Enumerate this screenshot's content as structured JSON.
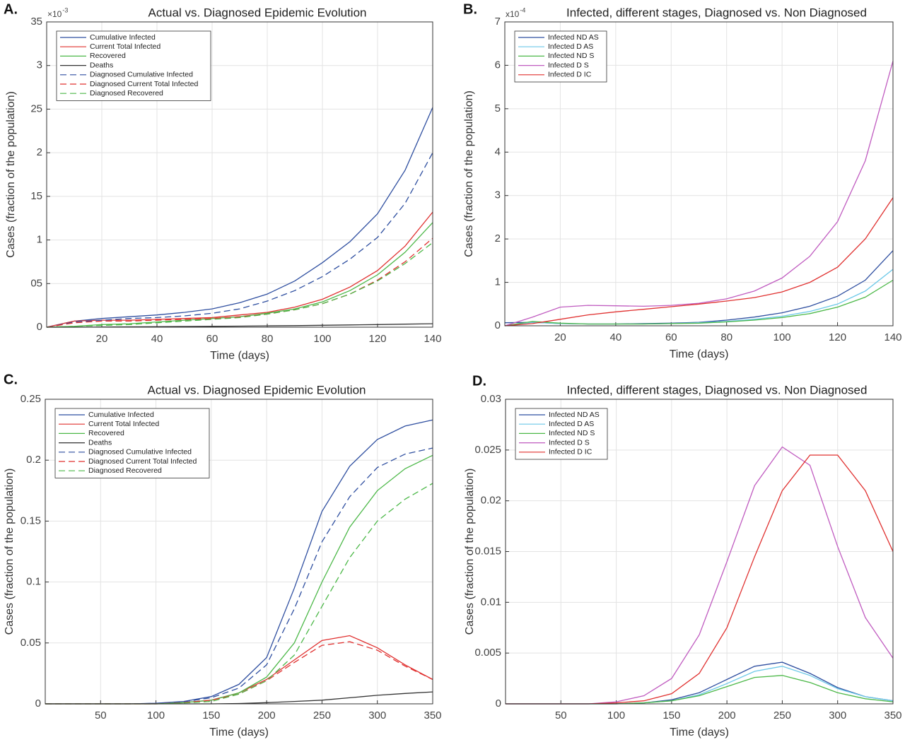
{
  "chart_data": [
    {
      "type": "line",
      "panel_label": "A.",
      "title": "Actual vs. Diagnosed Epidemic Evolution",
      "xlabel": "Time (days)",
      "ylabel": "Cases (fraction of the population)",
      "y_multiplier": "×10",
      "y_exponent": "-3",
      "x": [
        0,
        10,
        20,
        30,
        40,
        50,
        60,
        70,
        80,
        90,
        100,
        110,
        120,
        130,
        140
      ],
      "xlim": [
        0,
        140
      ],
      "xticks": [
        20,
        40,
        60,
        80,
        100,
        120,
        140
      ],
      "ylim": [
        0,
        3.5
      ],
      "yticks": [
        0,
        {
          "value": 0.5,
          "label": "05"
        },
        1,
        {
          "value": 1.5,
          "label": "15"
        },
        2,
        {
          "value": 2.5,
          "label": "25"
        },
        3,
        {
          "value": 3.5,
          "label": "35"
        }
      ],
      "grid": true,
      "legend": "upper left",
      "series": [
        {
          "name": "Cumulative Infected",
          "color": "#2f4fa0",
          "dash": false,
          "values": [
            0,
            0.07,
            0.1,
            0.12,
            0.14,
            0.17,
            0.21,
            0.28,
            0.38,
            0.53,
            0.74,
            0.98,
            1.3,
            1.8,
            2.52
          ]
        },
        {
          "name": "Current Total Infected",
          "color": "#e0302f",
          "dash": false,
          "values": [
            0,
            0.07,
            0.08,
            0.08,
            0.09,
            0.1,
            0.11,
            0.14,
            0.17,
            0.23,
            0.32,
            0.46,
            0.65,
            0.93,
            1.32
          ]
        },
        {
          "name": "Recovered",
          "color": "#4cb848",
          "dash": false,
          "values": [
            0,
            0.01,
            0.03,
            0.04,
            0.06,
            0.08,
            0.1,
            0.12,
            0.16,
            0.21,
            0.29,
            0.42,
            0.6,
            0.86,
            1.2
          ]
        },
        {
          "name": "Deaths",
          "color": "#333333",
          "dash": false,
          "values": [
            0,
            0,
            0.002,
            0.004,
            0.006,
            0.008,
            0.01,
            0.012,
            0.015,
            0.018,
            0.022,
            0.026,
            0.03,
            0.035,
            0.04
          ]
        },
        {
          "name": "Diagnosed Cumulative Infected",
          "color": "#2f4fa0",
          "dash": true,
          "values": [
            0,
            0.06,
            0.08,
            0.1,
            0.11,
            0.13,
            0.16,
            0.21,
            0.3,
            0.42,
            0.58,
            0.78,
            1.03,
            1.42,
            2.0
          ]
        },
        {
          "name": "Diagnosed Current Total Infected",
          "color": "#e0302f",
          "dash": true,
          "values": [
            0,
            0.05,
            0.07,
            0.07,
            0.08,
            0.09,
            0.1,
            0.12,
            0.15,
            0.2,
            0.27,
            0.38,
            0.54,
            0.75,
            1.02
          ]
        },
        {
          "name": "Diagnosed Recovered",
          "color": "#4cb848",
          "dash": true,
          "values": [
            0,
            0.01,
            0.02,
            0.03,
            0.05,
            0.07,
            0.09,
            0.11,
            0.15,
            0.2,
            0.27,
            0.38,
            0.53,
            0.73,
            0.97
          ]
        }
      ]
    },
    {
      "type": "line",
      "panel_label": "B.",
      "title": "Infected, different stages, Diagnosed vs. Non Diagnosed",
      "xlabel": "Time (days)",
      "ylabel": "Cases (fraction of the population)",
      "y_multiplier": "x10",
      "y_exponent": "-4",
      "x": [
        0,
        10,
        20,
        30,
        40,
        50,
        60,
        70,
        80,
        90,
        100,
        110,
        120,
        130,
        140
      ],
      "xlim": [
        0,
        140
      ],
      "xticks": [
        20,
        40,
        60,
        80,
        100,
        120,
        140
      ],
      "ylim": [
        0,
        7
      ],
      "yticks": [
        0,
        1,
        2,
        3,
        4,
        5,
        6,
        7
      ],
      "grid": true,
      "legend": "upper left",
      "series": [
        {
          "name": "Infected ND AS",
          "color": "#2f4fa0",
          "dash": false,
          "values": [
            0.07,
            0.08,
            0.05,
            0.04,
            0.04,
            0.05,
            0.06,
            0.08,
            0.13,
            0.2,
            0.3,
            0.45,
            0.68,
            1.05,
            1.73
          ]
        },
        {
          "name": "Infected D AS",
          "color": "#6cc8e8",
          "dash": false,
          "values": [
            0,
            0.08,
            0.05,
            0.04,
            0.04,
            0.04,
            0.05,
            0.07,
            0.1,
            0.15,
            0.22,
            0.33,
            0.5,
            0.8,
            1.3
          ]
        },
        {
          "name": "Infected ND S",
          "color": "#4cb848",
          "dash": false,
          "values": [
            0,
            0.1,
            0.06,
            0.04,
            0.04,
            0.04,
            0.05,
            0.06,
            0.09,
            0.13,
            0.19,
            0.28,
            0.43,
            0.66,
            1.05
          ]
        },
        {
          "name": "Infected D S",
          "color": "#c05cc0",
          "dash": false,
          "values": [
            0,
            0.2,
            0.43,
            0.47,
            0.46,
            0.45,
            0.47,
            0.52,
            0.62,
            0.8,
            1.1,
            1.6,
            2.4,
            3.8,
            6.1
          ]
        },
        {
          "name": "Infected D IC",
          "color": "#e0302f",
          "dash": false,
          "values": [
            0,
            0.05,
            0.15,
            0.25,
            0.32,
            0.38,
            0.44,
            0.5,
            0.57,
            0.65,
            0.78,
            1.0,
            1.35,
            2.0,
            2.95
          ]
        }
      ]
    },
    {
      "type": "line",
      "panel_label": "C.",
      "title": "Actual vs. Diagnosed Epidemic Evolution",
      "xlabel": "Time (days)",
      "ylabel": "Cases (fraction of the population)",
      "x": [
        0,
        25,
        50,
        75,
        100,
        125,
        150,
        175,
        200,
        225,
        250,
        275,
        300,
        325,
        350
      ],
      "xlim": [
        0,
        350
      ],
      "xticks": [
        50,
        100,
        150,
        200,
        250,
        300,
        350
      ],
      "ylim": [
        0,
        0.25
      ],
      "yticks": [
        0,
        0.05,
        0.1,
        0.15,
        0.2,
        0.25
      ],
      "grid": true,
      "legend": "upper left",
      "series": [
        {
          "name": "Cumulative Infected",
          "color": "#2f4fa0",
          "dash": false,
          "values": [
            0,
            0,
            0,
            0,
            0.0005,
            0.002,
            0.006,
            0.016,
            0.038,
            0.095,
            0.158,
            0.195,
            0.217,
            0.228,
            0.233
          ]
        },
        {
          "name": "Current Total Infected",
          "color": "#e0302f",
          "dash": false,
          "values": [
            0,
            0,
            0,
            0,
            0,
            0.001,
            0.003,
            0.009,
            0.02,
            0.036,
            0.052,
            0.056,
            0.046,
            0.032,
            0.02
          ]
        },
        {
          "name": "Recovered",
          "color": "#4cb848",
          "dash": false,
          "values": [
            0,
            0,
            0,
            0,
            0,
            0.001,
            0.003,
            0.009,
            0.022,
            0.05,
            0.1,
            0.145,
            0.175,
            0.193,
            0.204
          ]
        },
        {
          "name": "Deaths",
          "color": "#333333",
          "dash": false,
          "values": [
            0,
            0,
            0,
            0,
            0,
            0,
            0,
            0.0003,
            0.001,
            0.002,
            0.003,
            0.005,
            0.007,
            0.0085,
            0.0098
          ]
        },
        {
          "name": "Diagnosed Cumulative Infected",
          "color": "#2f4fa0",
          "dash": true,
          "values": [
            0,
            0,
            0,
            0,
            0.0004,
            0.0017,
            0.005,
            0.013,
            0.032,
            0.078,
            0.133,
            0.17,
            0.194,
            0.205,
            0.21
          ]
        },
        {
          "name": "Diagnosed Current Total Infected",
          "color": "#e0302f",
          "dash": true,
          "values": [
            0,
            0,
            0,
            0,
            0,
            0.001,
            0.003,
            0.008,
            0.019,
            0.034,
            0.048,
            0.051,
            0.044,
            0.031,
            0.02
          ]
        },
        {
          "name": "Diagnosed Recovered",
          "color": "#4cb848",
          "dash": true,
          "values": [
            0,
            0,
            0,
            0,
            0,
            0.0007,
            0.002,
            0.008,
            0.019,
            0.04,
            0.08,
            0.12,
            0.15,
            0.168,
            0.181
          ]
        }
      ]
    },
    {
      "type": "line",
      "panel_label": "D.",
      "title": "Infected, different stages, Diagnosed vs. Non Diagnosed",
      "xlabel": "Time (days)",
      "ylabel": "Cases (fraction of the population)",
      "x": [
        0,
        25,
        50,
        75,
        100,
        125,
        150,
        175,
        200,
        225,
        250,
        275,
        300,
        325,
        350
      ],
      "xlim": [
        0,
        350
      ],
      "xticks": [
        50,
        100,
        150,
        200,
        250,
        300,
        350
      ],
      "ylim": [
        0,
        0.03
      ],
      "yticks": [
        0,
        0.005,
        0.01,
        0.015,
        0.02,
        0.025,
        0.03
      ],
      "grid": true,
      "legend": "upper left",
      "series": [
        {
          "name": "Infected ND AS",
          "color": "#2f4fa0",
          "dash": false,
          "values": [
            0,
            0,
            0,
            0,
            0,
            0.0001,
            0.0004,
            0.0011,
            0.0024,
            0.0037,
            0.0041,
            0.003,
            0.0016,
            0.0007,
            0.0003
          ]
        },
        {
          "name": "Infected D AS",
          "color": "#6cc8e8",
          "dash": false,
          "values": [
            0,
            0,
            0,
            0,
            0,
            0.0001,
            0.0003,
            0.0009,
            0.002,
            0.0032,
            0.0037,
            0.0028,
            0.0015,
            0.0007,
            0.0003
          ]
        },
        {
          "name": "Infected ND S",
          "color": "#4cb848",
          "dash": false,
          "values": [
            0,
            0,
            0,
            0,
            0,
            0.0001,
            0.0003,
            0.0008,
            0.0017,
            0.0026,
            0.0028,
            0.0021,
            0.0011,
            0.0005,
            0.0002
          ]
        },
        {
          "name": "Infected D S",
          "color": "#c05cc0",
          "dash": false,
          "values": [
            0,
            0,
            0,
            0,
            0.0002,
            0.0008,
            0.0025,
            0.0068,
            0.014,
            0.0215,
            0.0253,
            0.0235,
            0.0155,
            0.0085,
            0.0045
          ]
        },
        {
          "name": "Infected D IC",
          "color": "#e0302f",
          "dash": false,
          "values": [
            0,
            0,
            0,
            0,
            0.0001,
            0.0003,
            0.001,
            0.003,
            0.0075,
            0.0145,
            0.021,
            0.0245,
            0.0245,
            0.021,
            0.015
          ]
        }
      ]
    }
  ]
}
